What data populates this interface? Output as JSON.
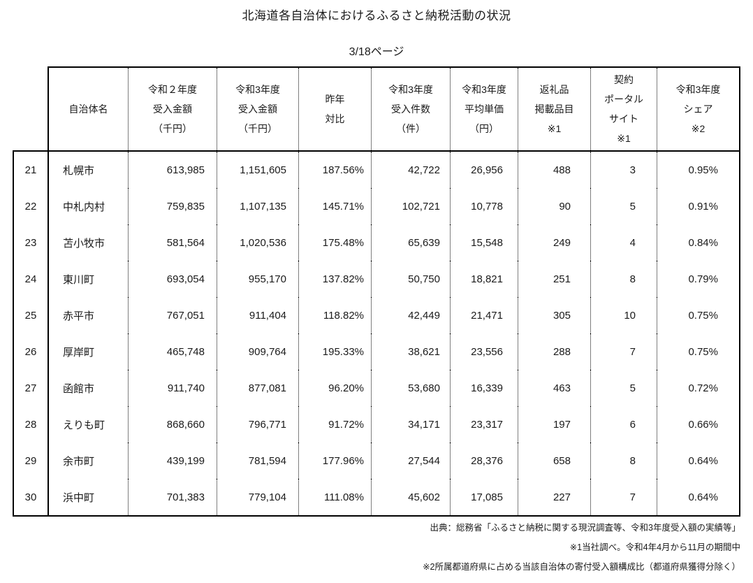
{
  "title": "北海道各自治体におけるふるさと納税活動の状況",
  "page_indicator": "3/18ページ",
  "table": {
    "columns": [
      {
        "id": "municipality",
        "label_lines": [
          "自治体名"
        ]
      },
      {
        "id": "r2_amount",
        "label_lines": [
          "令和２年度",
          "受入金額",
          "（千円）"
        ]
      },
      {
        "id": "r3_amount",
        "label_lines": [
          "令和3年度",
          "受入金額",
          "（千円）"
        ]
      },
      {
        "id": "yoy",
        "label_lines": [
          "昨年",
          "対比"
        ]
      },
      {
        "id": "r3_count",
        "label_lines": [
          "令和3年度",
          "受入件数",
          "（件）"
        ]
      },
      {
        "id": "r3_avg_price",
        "label_lines": [
          "令和3年度",
          "平均単価",
          "（円）"
        ]
      },
      {
        "id": "gift_items",
        "label_lines": [
          "返礼品",
          "掲載品目",
          "※1"
        ]
      },
      {
        "id": "portal_sites",
        "label_lines": [
          "契約",
          "ポータル",
          "サイト",
          "※1"
        ]
      },
      {
        "id": "r3_share",
        "label_lines": [
          "令和3年度",
          "シェア",
          "※2"
        ]
      }
    ],
    "rows": [
      {
        "rank": "21",
        "municipality": "札幌市",
        "r2_amount": "613,985",
        "r3_amount": "1,151,605",
        "yoy": "187.56%",
        "r3_count": "42,722",
        "r3_avg_price": "26,956",
        "gift_items": "488",
        "portal_sites": "3",
        "r3_share": "0.95%"
      },
      {
        "rank": "22",
        "municipality": "中札内村",
        "r2_amount": "759,835",
        "r3_amount": "1,107,135",
        "yoy": "145.71%",
        "r3_count": "102,721",
        "r3_avg_price": "10,778",
        "gift_items": "90",
        "portal_sites": "5",
        "r3_share": "0.91%"
      },
      {
        "rank": "23",
        "municipality": "苫小牧市",
        "r2_amount": "581,564",
        "r3_amount": "1,020,536",
        "yoy": "175.48%",
        "r3_count": "65,639",
        "r3_avg_price": "15,548",
        "gift_items": "249",
        "portal_sites": "4",
        "r3_share": "0.84%"
      },
      {
        "rank": "24",
        "municipality": "東川町",
        "r2_amount": "693,054",
        "r3_amount": "955,170",
        "yoy": "137.82%",
        "r3_count": "50,750",
        "r3_avg_price": "18,821",
        "gift_items": "251",
        "portal_sites": "8",
        "r3_share": "0.79%"
      },
      {
        "rank": "25",
        "municipality": "赤平市",
        "r2_amount": "767,051",
        "r3_amount": "911,404",
        "yoy": "118.82%",
        "r3_count": "42,449",
        "r3_avg_price": "21,471",
        "gift_items": "305",
        "portal_sites": "10",
        "r3_share": "0.75%"
      },
      {
        "rank": "26",
        "municipality": "厚岸町",
        "r2_amount": "465,748",
        "r3_amount": "909,764",
        "yoy": "195.33%",
        "r3_count": "38,621",
        "r3_avg_price": "23,556",
        "gift_items": "288",
        "portal_sites": "7",
        "r3_share": "0.75%"
      },
      {
        "rank": "27",
        "municipality": "函館市",
        "r2_amount": "911,740",
        "r3_amount": "877,081",
        "yoy": "96.20%",
        "r3_count": "53,680",
        "r3_avg_price": "16,339",
        "gift_items": "463",
        "portal_sites": "5",
        "r3_share": "0.72%"
      },
      {
        "rank": "28",
        "municipality": "えりも町",
        "r2_amount": "868,660",
        "r3_amount": "796,771",
        "yoy": "91.72%",
        "r3_count": "34,171",
        "r3_avg_price": "23,317",
        "gift_items": "197",
        "portal_sites": "6",
        "r3_share": "0.66%"
      },
      {
        "rank": "29",
        "municipality": "余市町",
        "r2_amount": "439,199",
        "r3_amount": "781,594",
        "yoy": "177.96%",
        "r3_count": "27,544",
        "r3_avg_price": "28,376",
        "gift_items": "658",
        "portal_sites": "8",
        "r3_share": "0.64%"
      },
      {
        "rank": "30",
        "municipality": "浜中町",
        "r2_amount": "701,383",
        "r3_amount": "779,104",
        "yoy": "111.08%",
        "r3_count": "45,602",
        "r3_avg_price": "17,085",
        "gift_items": "227",
        "portal_sites": "7",
        "r3_share": "0.64%"
      }
    ]
  },
  "footnotes": [
    "出典：総務省「ふるさと納税に関する現況調査等、令和3年度受入額の実績等」",
    "※1当社調べ。令和4年4月から11月の期間中",
    "※2所属都道府県に占める当該自治体の寄付受入額構成比（都道府県獲得分除く）"
  ]
}
